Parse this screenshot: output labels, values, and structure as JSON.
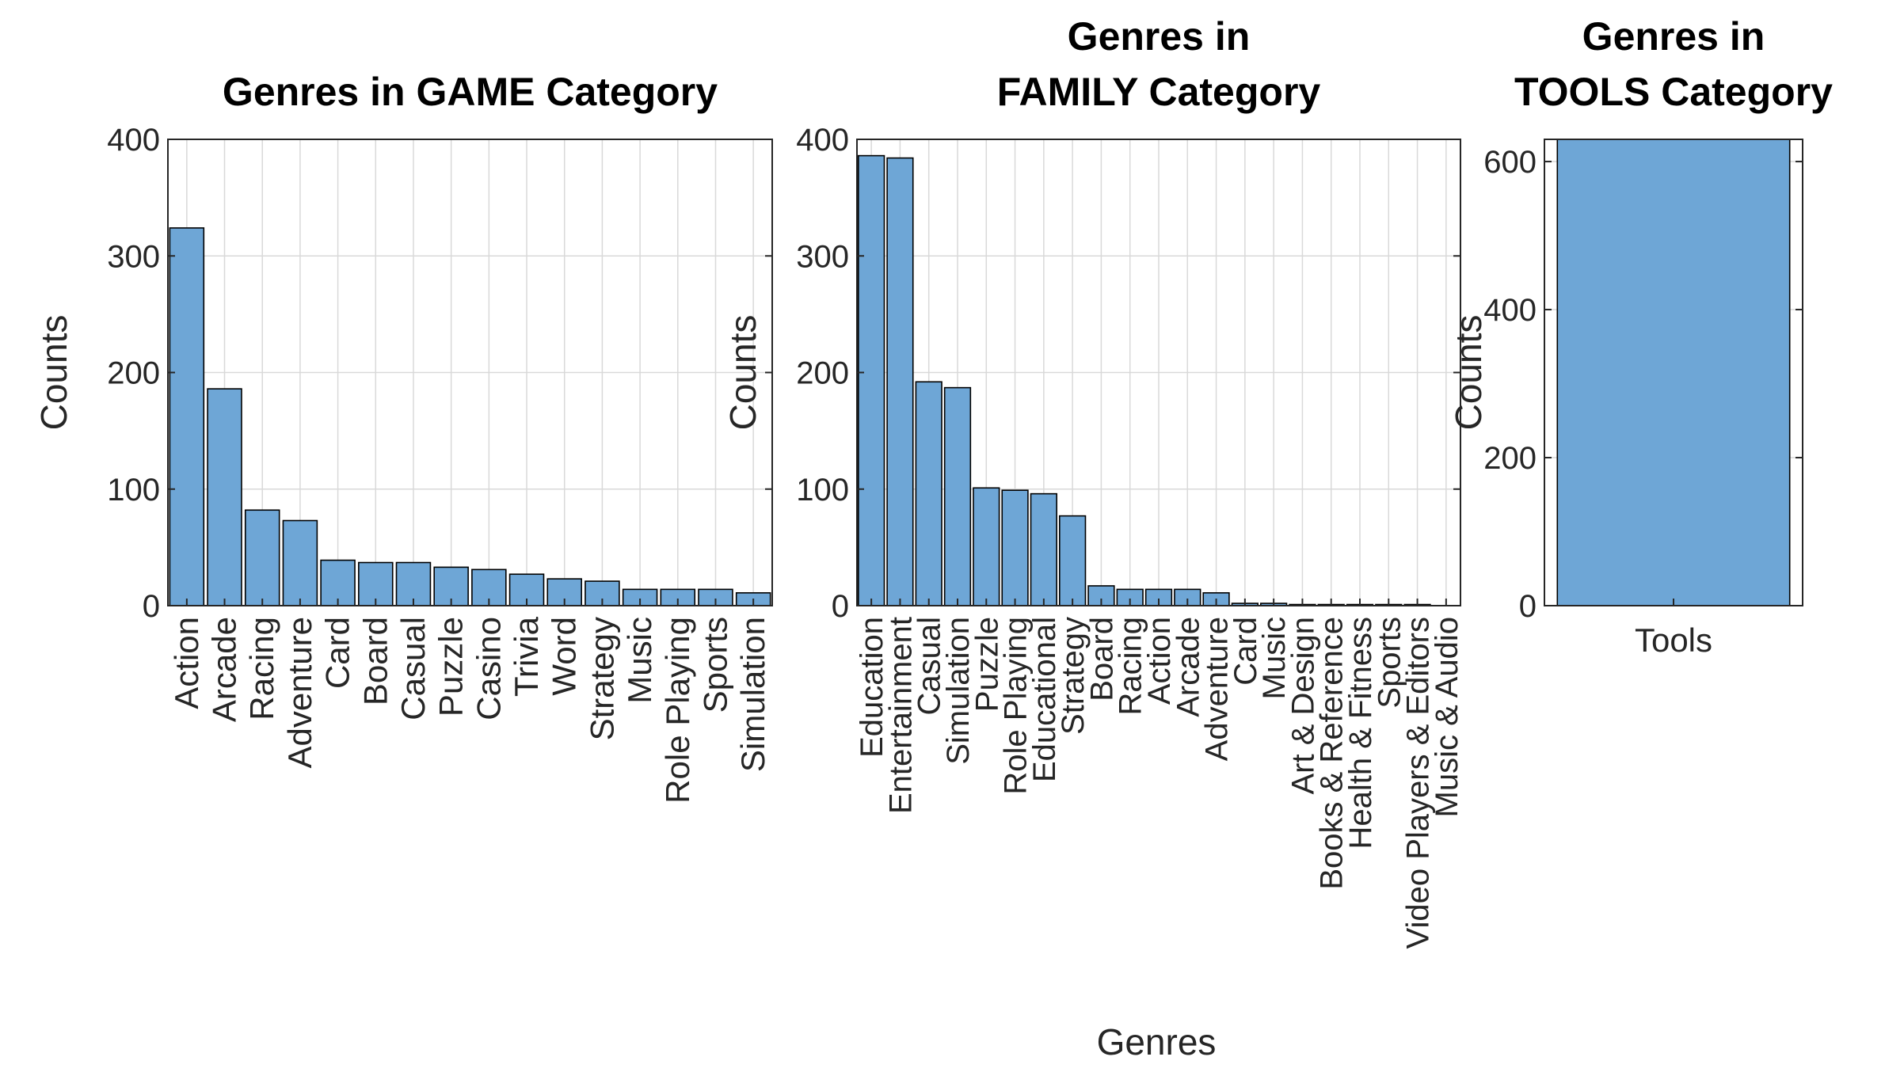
{
  "figure": {
    "xlabel": "Genres",
    "bar_color": "#6ea6d6",
    "edge_color": "#000000",
    "grid_color": "#d9d9d9"
  },
  "chart_data": [
    {
      "type": "bar",
      "title": "Genres in GAME Category",
      "ylabel": "Counts",
      "ylim": [
        0,
        400
      ],
      "yticks": [
        0,
        100,
        200,
        300,
        400
      ],
      "grid": true,
      "categories": [
        "Action",
        "Arcade",
        "Racing",
        "Adventure",
        "Card",
        "Board",
        "Casual",
        "Puzzle",
        "Casino",
        "Trivia",
        "Word",
        "Strategy",
        "Music",
        "Role Playing",
        "Sports",
        "Simulation"
      ],
      "values": [
        324,
        186,
        82,
        73,
        39,
        37,
        37,
        33,
        31,
        27,
        23,
        21,
        14,
        14,
        14,
        11
      ]
    },
    {
      "type": "bar",
      "title": "Genres in\nFAMILY Category",
      "ylabel": "Counts",
      "ylim": [
        0,
        400
      ],
      "yticks": [
        0,
        100,
        200,
        300,
        400
      ],
      "grid": true,
      "categories": [
        "Education",
        "Entertainment",
        "Casual",
        "Simulation",
        "Puzzle",
        "Role Playing",
        "Educational",
        "Strategy",
        "Board",
        "Racing",
        "Action",
        "Arcade",
        "Adventure",
        "Card",
        "Music",
        "Art & Design",
        "Books & Reference",
        "Health & Fitness",
        "Sports",
        "Video Players & Editors",
        "Music & Audio"
      ],
      "values": [
        386,
        384,
        192,
        187,
        101,
        99,
        96,
        77,
        17,
        14,
        14,
        14,
        11,
        2,
        2,
        1,
        1,
        1,
        1,
        1,
        0
      ],
      "xlabel": "Genres"
    },
    {
      "type": "bar",
      "title": "Genres in\nTOOLS Category",
      "ylabel": "Counts",
      "ylim": [
        0,
        630
      ],
      "yticks": [
        0,
        200,
        400,
        600
      ],
      "grid": true,
      "categories": [
        "Tools"
      ],
      "values": [
        630
      ]
    }
  ]
}
